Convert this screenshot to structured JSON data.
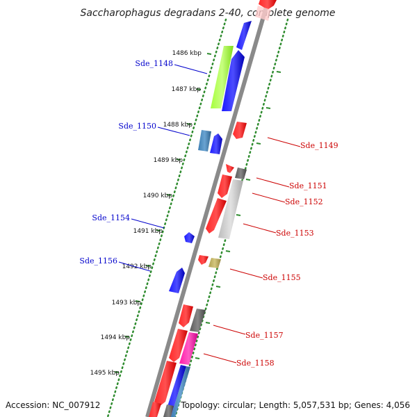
{
  "title": "Saccharophagus degradans 2-40, complete genome",
  "accession": "Accession: NC_007912",
  "topology": "Topology: circular; Length: 5,057,531 bp; Genes: 4,056",
  "colors": {
    "backbone": "#8a8a8a",
    "ruler": "#2e8b2e",
    "forward_label": "#0000cc",
    "reverse_label": "#cc0000"
  },
  "ticks": [
    {
      "label": "1486 kbp"
    },
    {
      "label": "1487 kbp"
    },
    {
      "label": "1488 kbp"
    },
    {
      "label": "1489 kbp"
    },
    {
      "label": "1490 kbp"
    },
    {
      "label": "1491 kbp"
    },
    {
      "label": "1492 kbp"
    },
    {
      "label": "1493 kbp"
    },
    {
      "label": "1494 kbp"
    },
    {
      "label": "1495 kbp"
    }
  ],
  "gene_labels": [
    {
      "text": "Sde_1148",
      "strand": "forward"
    },
    {
      "text": "Sde_1149",
      "strand": "reverse"
    },
    {
      "text": "Sde_1150",
      "strand": "forward"
    },
    {
      "text": "Sde_1151",
      "strand": "reverse"
    },
    {
      "text": "Sde_1152",
      "strand": "reverse"
    },
    {
      "text": "Sde_1153",
      "strand": "reverse"
    },
    {
      "text": "Sde_1154",
      "strand": "forward"
    },
    {
      "text": "Sde_1155",
      "strand": "reverse"
    },
    {
      "text": "Sde_1156",
      "strand": "forward"
    },
    {
      "text": "Sde_1157",
      "strand": "reverse"
    },
    {
      "text": "Sde_1158",
      "strand": "reverse"
    }
  ]
}
